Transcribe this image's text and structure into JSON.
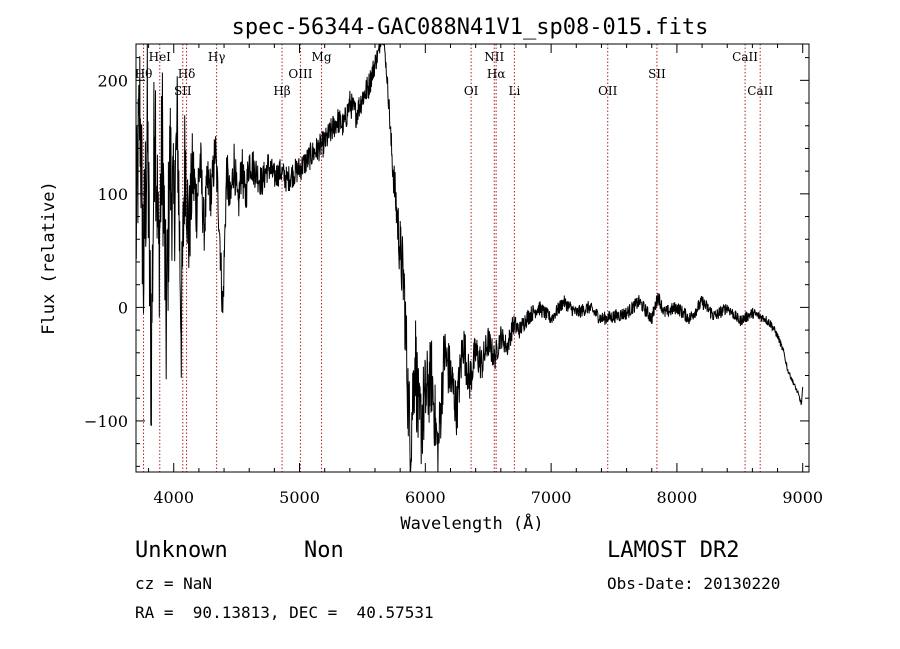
{
  "chart_data": {
    "type": "line",
    "title": "spec-56344-GAC088N41V1_sp08-015.fits",
    "xlabel": "Wavelength (Å)",
    "ylabel": "Flux (relative)",
    "xlim": [
      3700,
      9050
    ],
    "ylim": [
      -145,
      232
    ],
    "x_ticks": [
      4000,
      5000,
      6000,
      7000,
      8000,
      9000
    ],
    "y_ticks": [
      -100,
      0,
      100,
      200
    ],
    "grid": false,
    "line_color": "#000000",
    "marker_color": "#b22222",
    "series": [
      {
        "x": [
          3700,
          3730,
          3760,
          3790,
          3820,
          3850,
          3880,
          3910,
          3940,
          3970,
          4000,
          4030,
          4060,
          4090,
          4120,
          4150,
          4180,
          4210,
          4240,
          4270,
          4300,
          4330,
          4360,
          4390,
          4420,
          4450,
          4480,
          4510,
          4540,
          4570,
          4600,
          4650,
          4700,
          4750,
          4800,
          4850,
          4900,
          4950,
          5000,
          5050,
          5100,
          5150,
          5200,
          5250,
          5300,
          5350,
          5400,
          5450,
          5500,
          5550,
          5600,
          5630,
          5650,
          5670,
          5690,
          5710,
          5730,
          5760,
          5800,
          5830,
          5860,
          5880,
          5900,
          5920,
          5950,
          6000,
          6050,
          6100,
          6150,
          6200,
          6250,
          6300,
          6350,
          6400,
          6450,
          6500,
          6550,
          6600,
          6650,
          6700,
          6750,
          6800,
          6900,
          7000,
          7100,
          7200,
          7300,
          7400,
          7500,
          7600,
          7700,
          7800,
          7850,
          7900,
          8000,
          8100,
          8200,
          8300,
          8400,
          8500,
          8600,
          8700,
          8750,
          8800,
          8850,
          8880,
          8920,
          8960,
          8990,
          9000
        ],
        "y": [
          60,
          180,
          30,
          160,
          -60,
          190,
          40,
          150,
          -20,
          130,
          80,
          160,
          -20,
          140,
          60,
          120,
          90,
          130,
          70,
          110,
          100,
          140,
          80,
          -5,
          120,
          90,
          130,
          85,
          125,
          95,
          130,
          120,
          110,
          125,
          115,
          120,
          112,
          118,
          122,
          128,
          135,
          140,
          145,
          155,
          165,
          160,
          180,
          170,
          185,
          195,
          215,
          225,
          240,
          235,
          210,
          180,
          140,
          100,
          50,
          20,
          -70,
          -120,
          -80,
          -40,
          -110,
          -80,
          -60,
          -130,
          -40,
          -60,
          -90,
          -30,
          -65,
          -40,
          -50,
          -30,
          -45,
          -25,
          -35,
          -15,
          -20,
          -10,
          0,
          -10,
          5,
          -5,
          0,
          -10,
          -8,
          -5,
          5,
          -10,
          10,
          -5,
          0,
          -10,
          5,
          -8,
          0,
          -12,
          -5,
          -10,
          -15,
          -25,
          -40,
          -55,
          -65,
          -75,
          -85,
          -70
        ],
        "noise": [
          70,
          70,
          80,
          80,
          80,
          80,
          70,
          70,
          70,
          70,
          60,
          60,
          55,
          55,
          45,
          40,
          35,
          30,
          25,
          25,
          22,
          22,
          22,
          22,
          22,
          22,
          20,
          20,
          20,
          18,
          18,
          16,
          14,
          14,
          12,
          12,
          12,
          12,
          12,
          12,
          12,
          12,
          12,
          12,
          12,
          12,
          12,
          12,
          12,
          12,
          10,
          8,
          6,
          6,
          6,
          10,
          15,
          20,
          30,
          35,
          40,
          45,
          45,
          45,
          45,
          40,
          35,
          30,
          28,
          26,
          24,
          22,
          20,
          18,
          16,
          14,
          12,
          10,
          10,
          10,
          8,
          8,
          7,
          6,
          6,
          6,
          6,
          6,
          6,
          6,
          6,
          6,
          6,
          6,
          6,
          6,
          6,
          6,
          5,
          5,
          5,
          4,
          4,
          3,
          3,
          2,
          2,
          2,
          2,
          0
        ]
      }
    ],
    "lines_top": [
      {
        "x": 3760,
        "label": "Hθ",
        "row": 2
      },
      {
        "x": 3889,
        "label": "HeI",
        "row": 1
      },
      {
        "x": 4072,
        "label": "SII",
        "row": 3
      },
      {
        "x": 4102,
        "label": "Hδ",
        "row": 2
      },
      {
        "x": 4341,
        "label": "Hγ",
        "row": 1
      },
      {
        "x": 4861,
        "label": "Hβ",
        "row": 3
      },
      {
        "x": 5007,
        "label": "OIII",
        "row": 2
      },
      {
        "x": 5175,
        "label": "Mg",
        "row": 1
      },
      {
        "x": 6364,
        "label": "OI",
        "row": 3
      },
      {
        "x": 6548,
        "label": "NII",
        "row": 1
      },
      {
        "x": 6563,
        "label": "Hα",
        "row": 2
      },
      {
        "x": 6708,
        "label": "Li",
        "row": 3
      },
      {
        "x": 7450,
        "label": "OII",
        "row": 3
      },
      {
        "x": 7841,
        "label": "SII",
        "row": 2
      },
      {
        "x": 8542,
        "label": "CaII",
        "row": 1
      },
      {
        "x": 8662,
        "label": "CaII",
        "row": 3
      }
    ]
  },
  "info": {
    "class_label": "Unknown",
    "subclass_label": "Non",
    "cz_label": "cz = NaN",
    "radec_label": "RA =  90.13813, DEC =  40.57531",
    "survey_label": "LAMOST DR2",
    "obs_date_label": "Obs-Date: 20130220"
  }
}
